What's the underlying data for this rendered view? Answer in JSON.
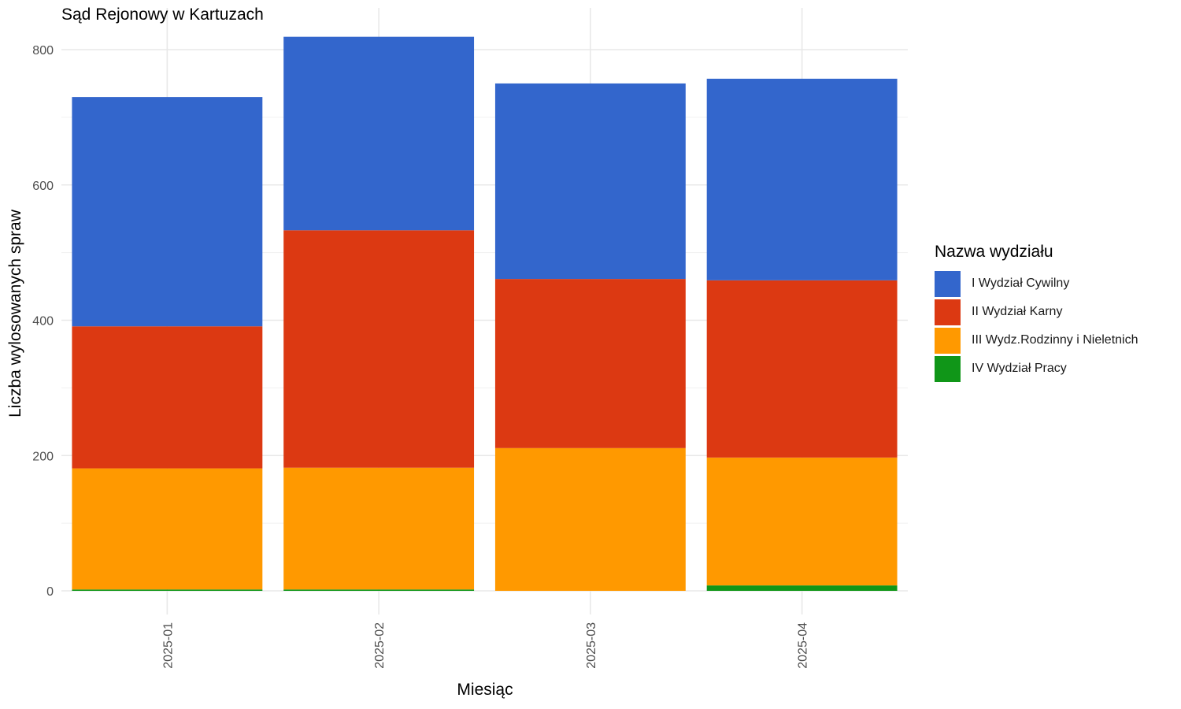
{
  "chart_data": {
    "type": "bar",
    "stacked": true,
    "title": "Sąd Rejonowy w Kartuzach",
    "xlabel": "Miesiąc",
    "ylabel": "Liczba wylosowanych spraw",
    "categories": [
      "2025-01",
      "2025-02",
      "2025-03",
      "2025-04"
    ],
    "ylim": [
      0,
      820
    ],
    "yticks": [
      0,
      200,
      400,
      600,
      800
    ],
    "grid": true,
    "legend_position": "right",
    "legend_title": "Nazwa wydziału",
    "series": [
      {
        "name": "IV Wydział Pracy",
        "color": "#109618",
        "values": [
          2,
          2,
          0,
          8
        ]
      },
      {
        "name": "III Wydz.Rodzinny i Nieletnich",
        "color": "#FF9900",
        "values": [
          179,
          180,
          211,
          189
        ]
      },
      {
        "name": "II Wydział Karny",
        "color": "#DC3912",
        "values": [
          210,
          351,
          250,
          262
        ]
      },
      {
        "name": "I Wydział Cywilny",
        "color": "#3366CC",
        "values": [
          339,
          286,
          289,
          298
        ]
      }
    ],
    "legend_order": [
      "I Wydział Cywilny",
      "II Wydział Karny",
      "III Wydz.Rodzinny i Nieletnich",
      "IV Wydział Pracy"
    ]
  }
}
